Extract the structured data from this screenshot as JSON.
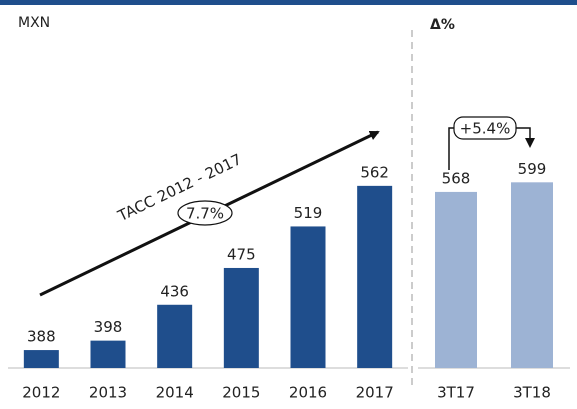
{
  "chart_data": [
    {
      "type": "bar",
      "title": "MXN",
      "categories": [
        "2012",
        "2013",
        "2014",
        "2015",
        "2016",
        "2017"
      ],
      "values": [
        388,
        398,
        436,
        475,
        519,
        562
      ],
      "color": "#1f4e8c",
      "ylim": [
        369,
        600
      ],
      "annotations": [
        "TACC 2012 - 2017",
        "7.7%"
      ]
    },
    {
      "type": "bar",
      "title": "Δ%",
      "categories": [
        "3T17",
        "3T18"
      ],
      "values": [
        568,
        599
      ],
      "color": "#9db3d4",
      "ylim": [
        0,
        650
      ],
      "annotations": [
        "+5.4%"
      ]
    }
  ]
}
